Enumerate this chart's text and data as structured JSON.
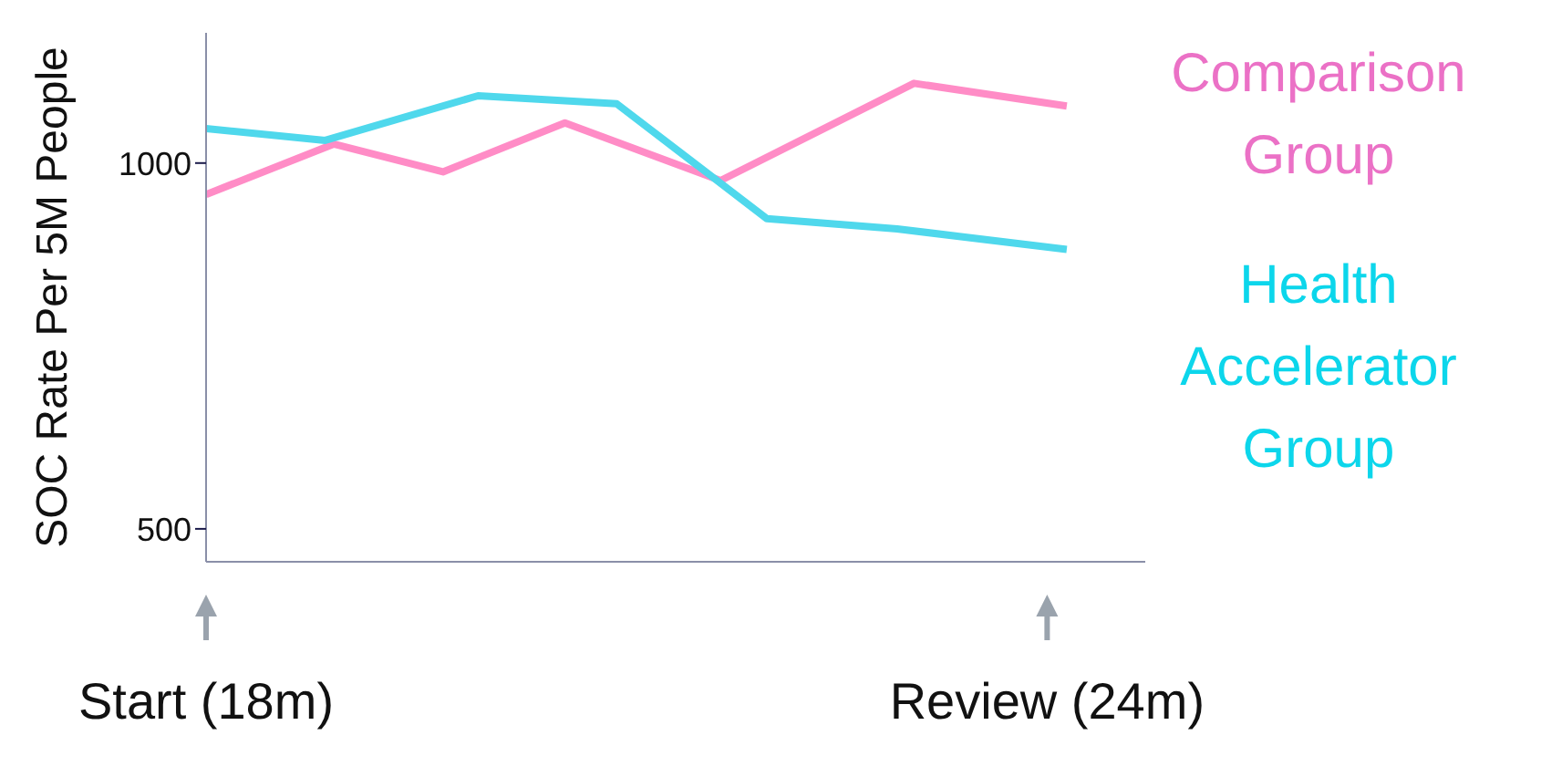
{
  "chart_data": {
    "type": "line",
    "ylabel": "SOC Rate Per 5M People",
    "xlim": [
      18,
      24.7
    ],
    "xticks": [
      {
        "value": 18,
        "label": "Start (18m)"
      },
      {
        "value": 24,
        "label": "Review (24m)"
      }
    ],
    "ylim": [
      455,
      1178
    ],
    "yticks": [
      500,
      1000
    ],
    "grid": false,
    "legend": "right",
    "marker": "none",
    "line_style": "solid",
    "series": [
      {
        "name": "Comparison Group",
        "color": "#ff8cc6",
        "x": [
          18,
          18.91,
          19.69,
          20.56,
          21.67,
          23.05,
          24.14
        ],
        "values": [
          957,
          1026,
          988,
          1055,
          976,
          1109,
          1078
        ]
      },
      {
        "name": "Health Accelerator Group",
        "color": "#4fd8ec",
        "x": [
          18,
          18.85,
          19.94,
          20.93,
          22.0,
          22.93,
          24.14
        ],
        "values": [
          1047,
          1031,
          1092,
          1081,
          924,
          910,
          882
        ]
      }
    ]
  }
}
